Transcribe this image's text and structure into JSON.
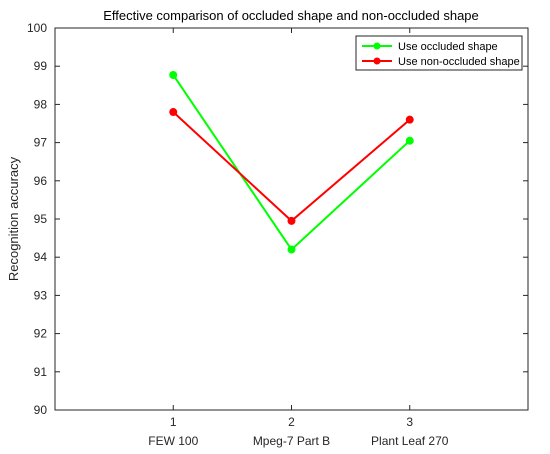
{
  "chart_data": {
    "type": "line",
    "title": "Effective comparison of occluded shape and non-occluded shape",
    "xlabel": "",
    "ylabel": "Recognition accuracy",
    "x": [
      1,
      2,
      3
    ],
    "x_tick_labels": [
      "1",
      "2",
      "3"
    ],
    "x_tick_sublabels": [
      "FEW 100",
      "Mpeg-7 Part B",
      "Plant Leaf 270"
    ],
    "xlim": [
      0,
      4
    ],
    "ylim": [
      90,
      100
    ],
    "y_ticks": [
      90,
      91,
      92,
      93,
      94,
      95,
      96,
      97,
      98,
      99,
      100
    ],
    "grid": false,
    "legend_position": "top-right",
    "series": [
      {
        "name": "Use occluded shape",
        "color": "#00ff00",
        "values": [
          98.77,
          94.2,
          97.05
        ]
      },
      {
        "name": "Use non-occluded shape",
        "color": "#ff0000",
        "values": [
          97.8,
          94.95,
          97.6
        ]
      }
    ]
  }
}
